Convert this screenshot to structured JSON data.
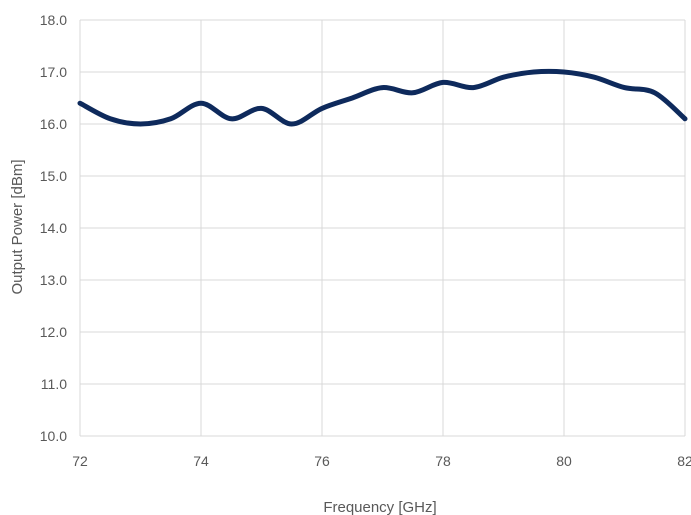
{
  "chart_data": {
    "type": "line",
    "title": "",
    "xlabel": "Frequency [GHz]",
    "ylabel": "Output Power [dBm]",
    "xlim": [
      72,
      82
    ],
    "ylim": [
      10.0,
      18.0
    ],
    "x_ticks": [
      72,
      74,
      76,
      78,
      80,
      82
    ],
    "x_tick_labels": [
      "72",
      "74",
      "76",
      "78",
      "80",
      "82"
    ],
    "y_ticks": [
      10,
      11,
      12,
      13,
      14,
      15,
      16,
      17,
      18
    ],
    "y_tick_labels": [
      "10.0",
      "11.0",
      "12.0",
      "13.0",
      "14.0",
      "15.0",
      "16.0",
      "17.0",
      "18.0"
    ],
    "grid": true,
    "legend": "none",
    "series": [
      {
        "color": "#0e2a5c",
        "x": [
          72,
          72.5,
          73,
          73.5,
          74,
          74.5,
          75,
          75.5,
          76,
          76.5,
          77,
          77.5,
          78,
          78.5,
          79,
          79.5,
          80,
          80.5,
          81,
          81.5,
          82
        ],
        "y": [
          16.4,
          16.1,
          16.0,
          16.1,
          16.4,
          16.1,
          16.3,
          16.0,
          16.3,
          16.5,
          16.7,
          16.6,
          16.8,
          16.7,
          16.9,
          17.0,
          17.0,
          16.9,
          16.7,
          16.6,
          16.1
        ]
      }
    ]
  }
}
